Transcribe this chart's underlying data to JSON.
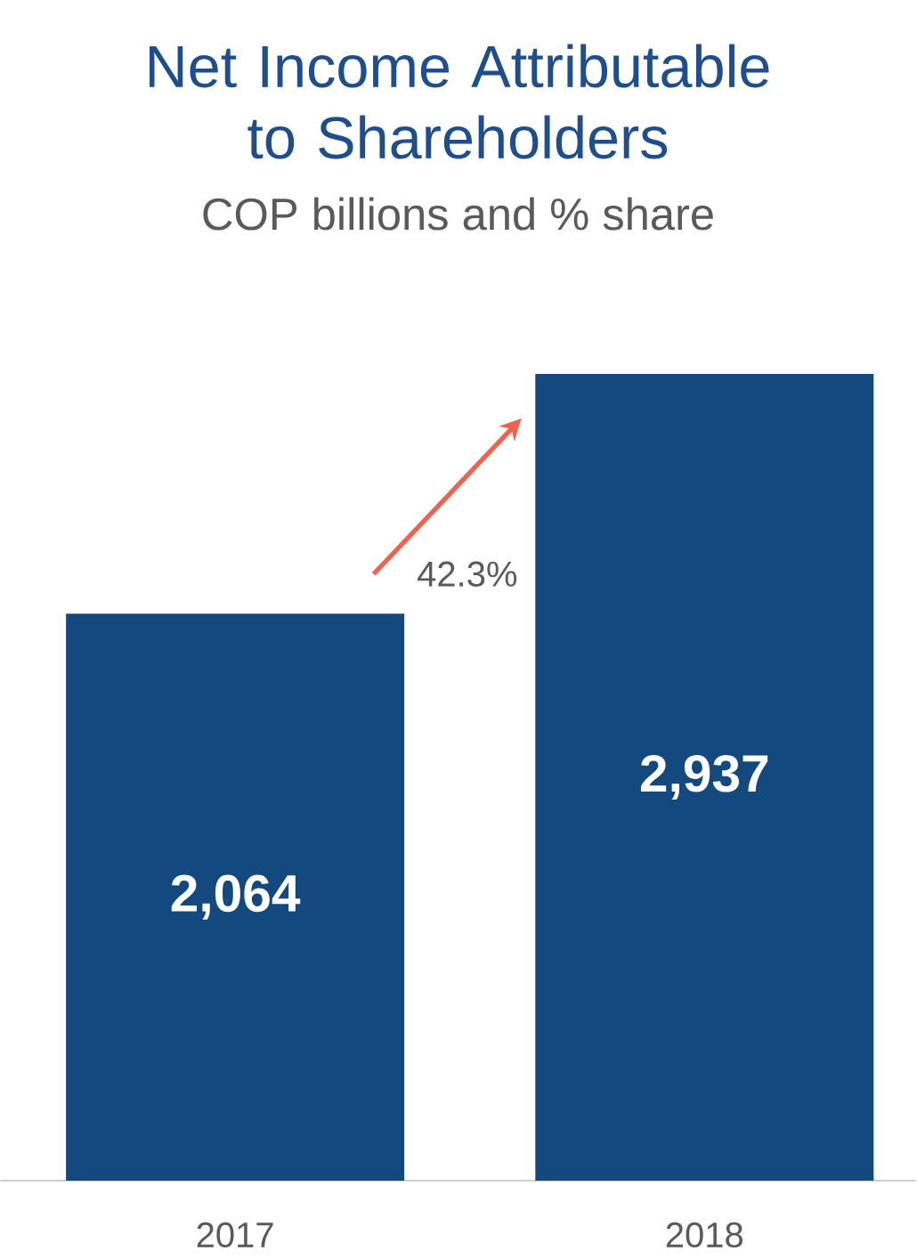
{
  "chart_data": {
    "type": "bar",
    "title": "Net Income Attributable to Shareholders",
    "subtitle": "COP billions and % share",
    "categories": [
      "2017",
      "2018"
    ],
    "values": [
      2064,
      2937
    ],
    "value_labels": [
      "2,064",
      "2,937"
    ],
    "color": "#13497e",
    "annotations": [
      "42.3%"
    ]
  }
}
